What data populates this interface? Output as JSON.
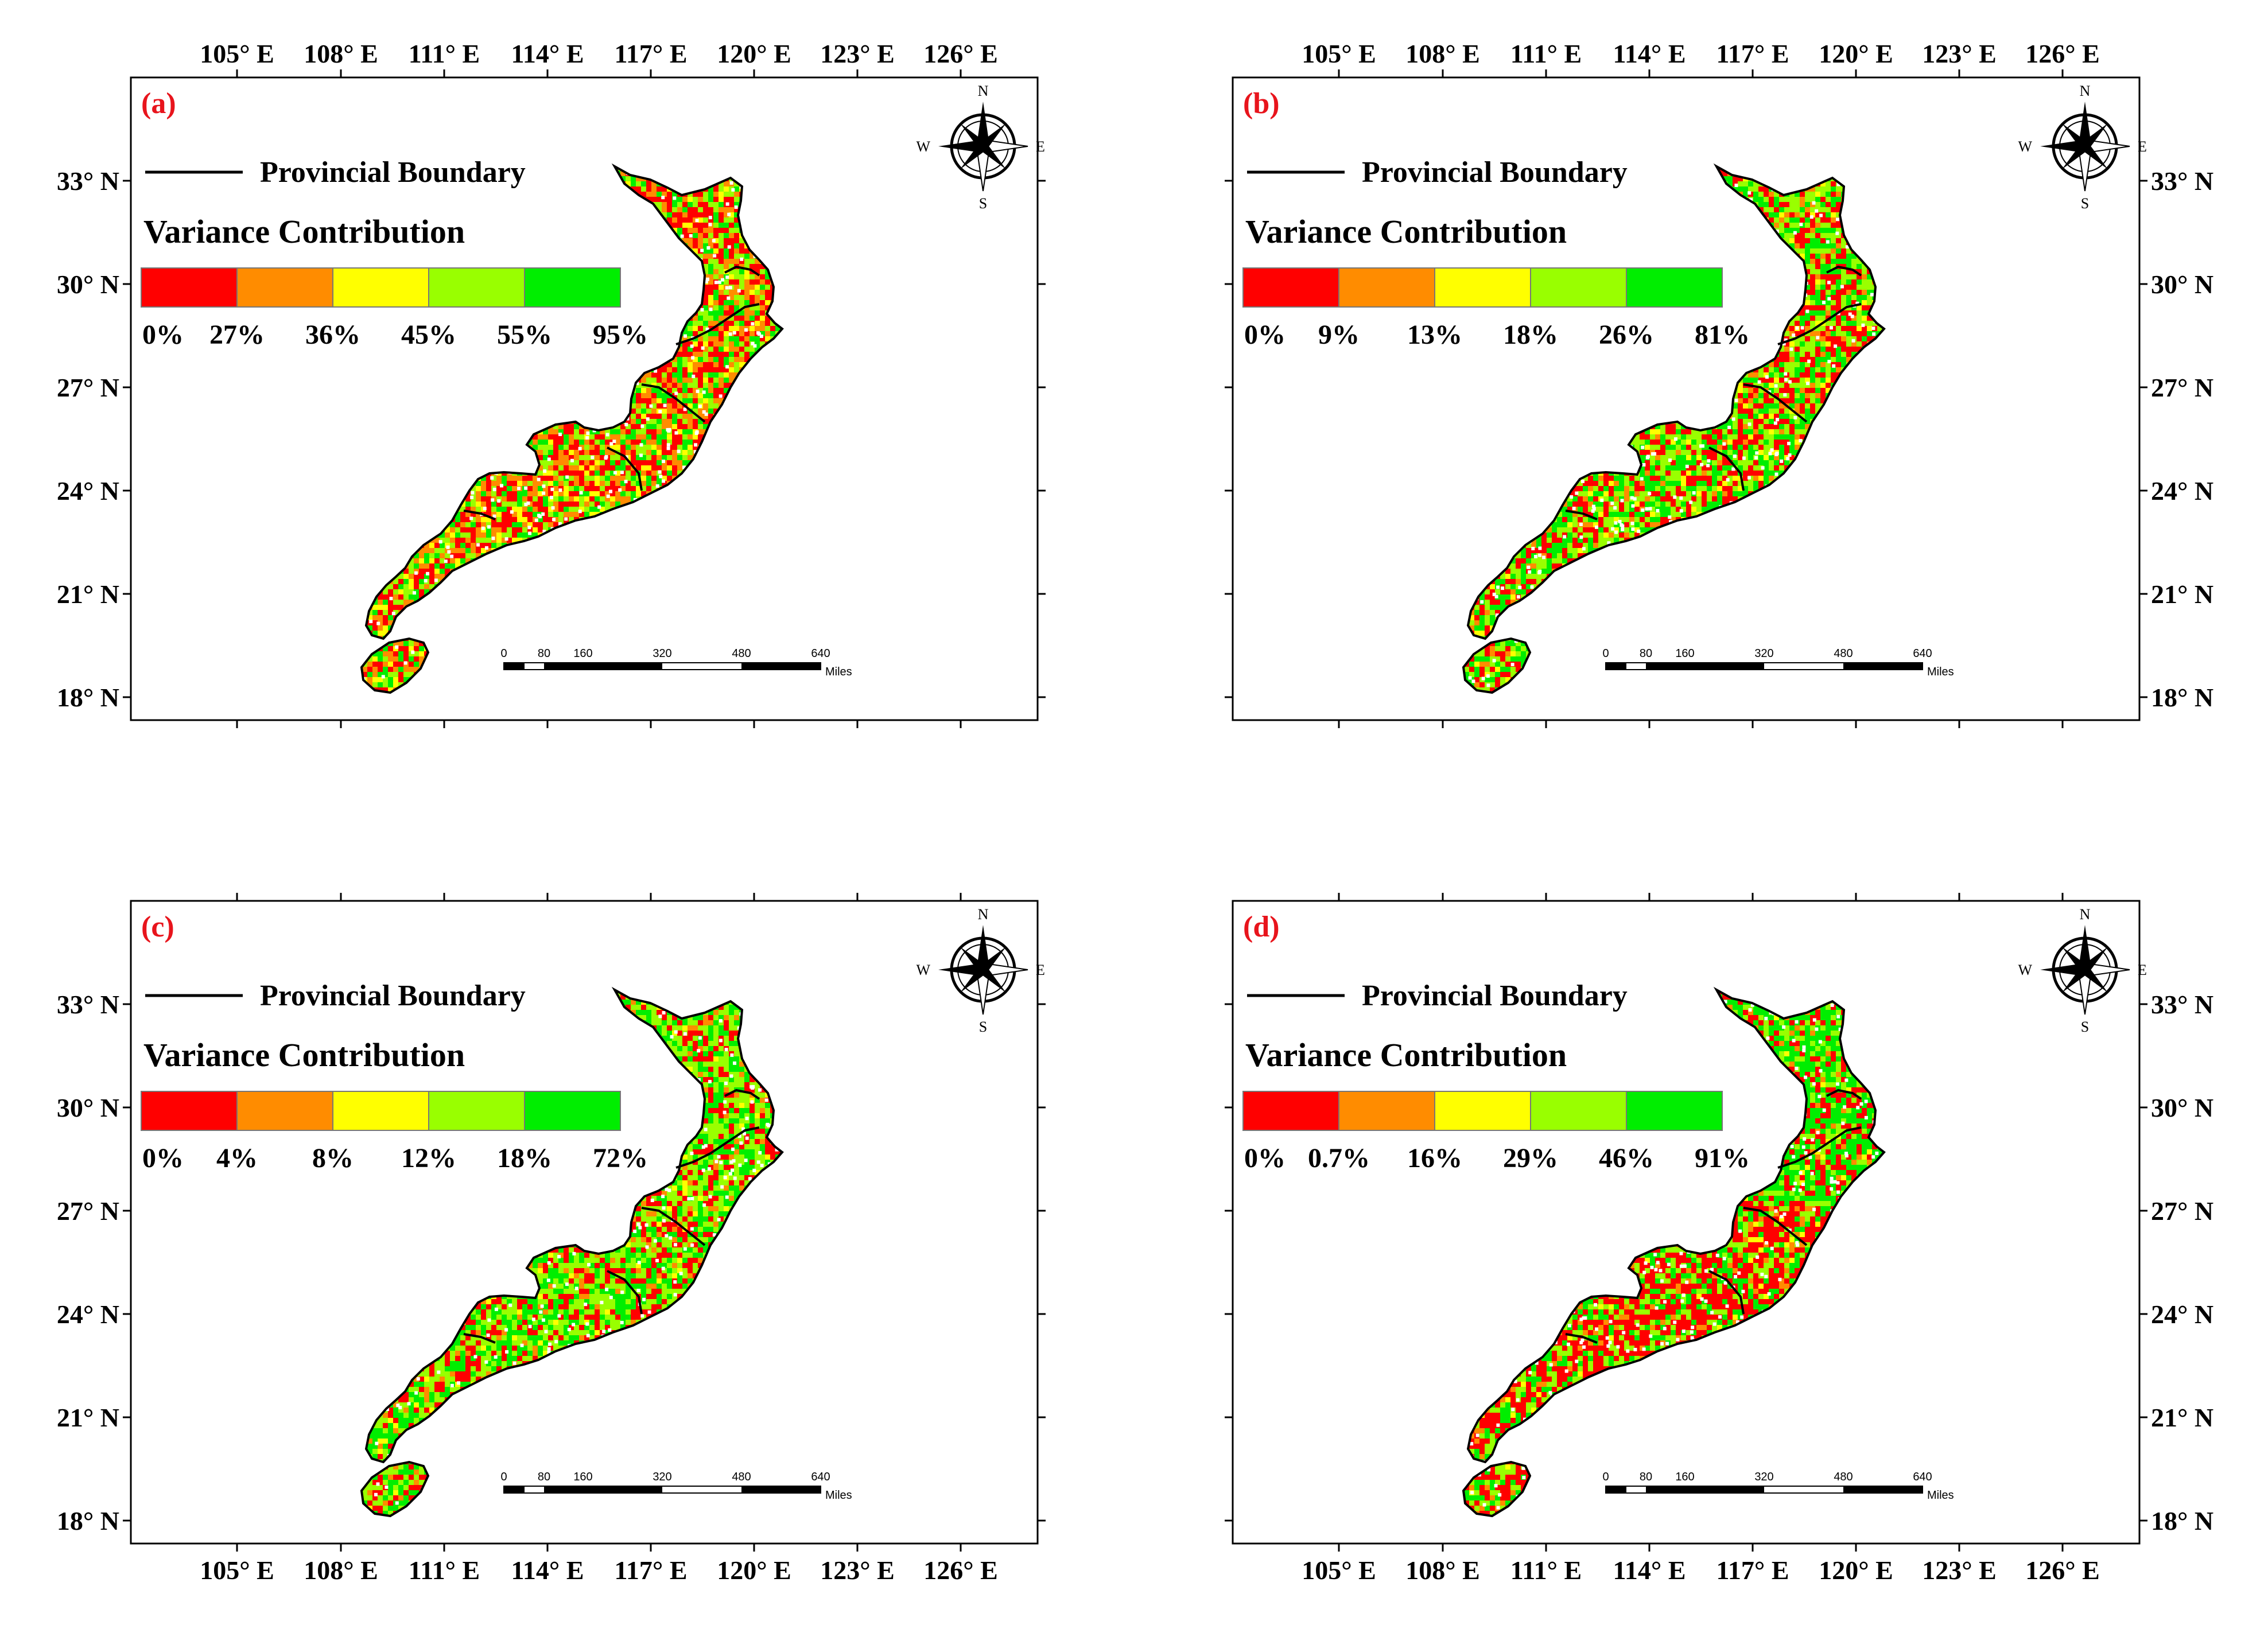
{
  "longitude_ticks": [
    "105° E",
    "108° E",
    "111° E",
    "114° E",
    "117° E",
    "120° E",
    "123° E",
    "126° E"
  ],
  "latitude_ticks": [
    "33° N",
    "30° N",
    "27° N",
    "24° N",
    "21° N",
    "18° N"
  ],
  "legend": {
    "boundary_label": "Provincial Boundary",
    "title": "Variance Contribution",
    "class_colors": [
      "#ff0000",
      "#ff8c00",
      "#ffff00",
      "#99ff00",
      "#00ee00"
    ]
  },
  "compass": {
    "n": "N",
    "s": "S",
    "e": "E",
    "w": "W"
  },
  "scale_bar": {
    "ticks": [
      "0",
      "80",
      "160",
      "320",
      "480",
      "640"
    ],
    "unit": "Miles"
  },
  "panels": [
    {
      "id": "a",
      "label": "(a)",
      "breaks": [
        "0%",
        "27%",
        "36%",
        "45%",
        "55%",
        "95%"
      ],
      "dominant_color": "mixed red / orange / green"
    },
    {
      "id": "b",
      "label": "(b)",
      "breaks": [
        "0%",
        "9%",
        "13%",
        "18%",
        "26%",
        "81%"
      ],
      "dominant_color": "mixed green / red"
    },
    {
      "id": "c",
      "label": "(c)",
      "breaks": [
        "0%",
        "4%",
        "8%",
        "12%",
        "18%",
        "72%"
      ],
      "dominant_color": "mostly green with red"
    },
    {
      "id": "d",
      "label": "(d)",
      "breaks": [
        "0%",
        "0.7%",
        "16%",
        "29%",
        "46%",
        "91%"
      ],
      "dominant_color": "green north, red south"
    }
  ]
}
